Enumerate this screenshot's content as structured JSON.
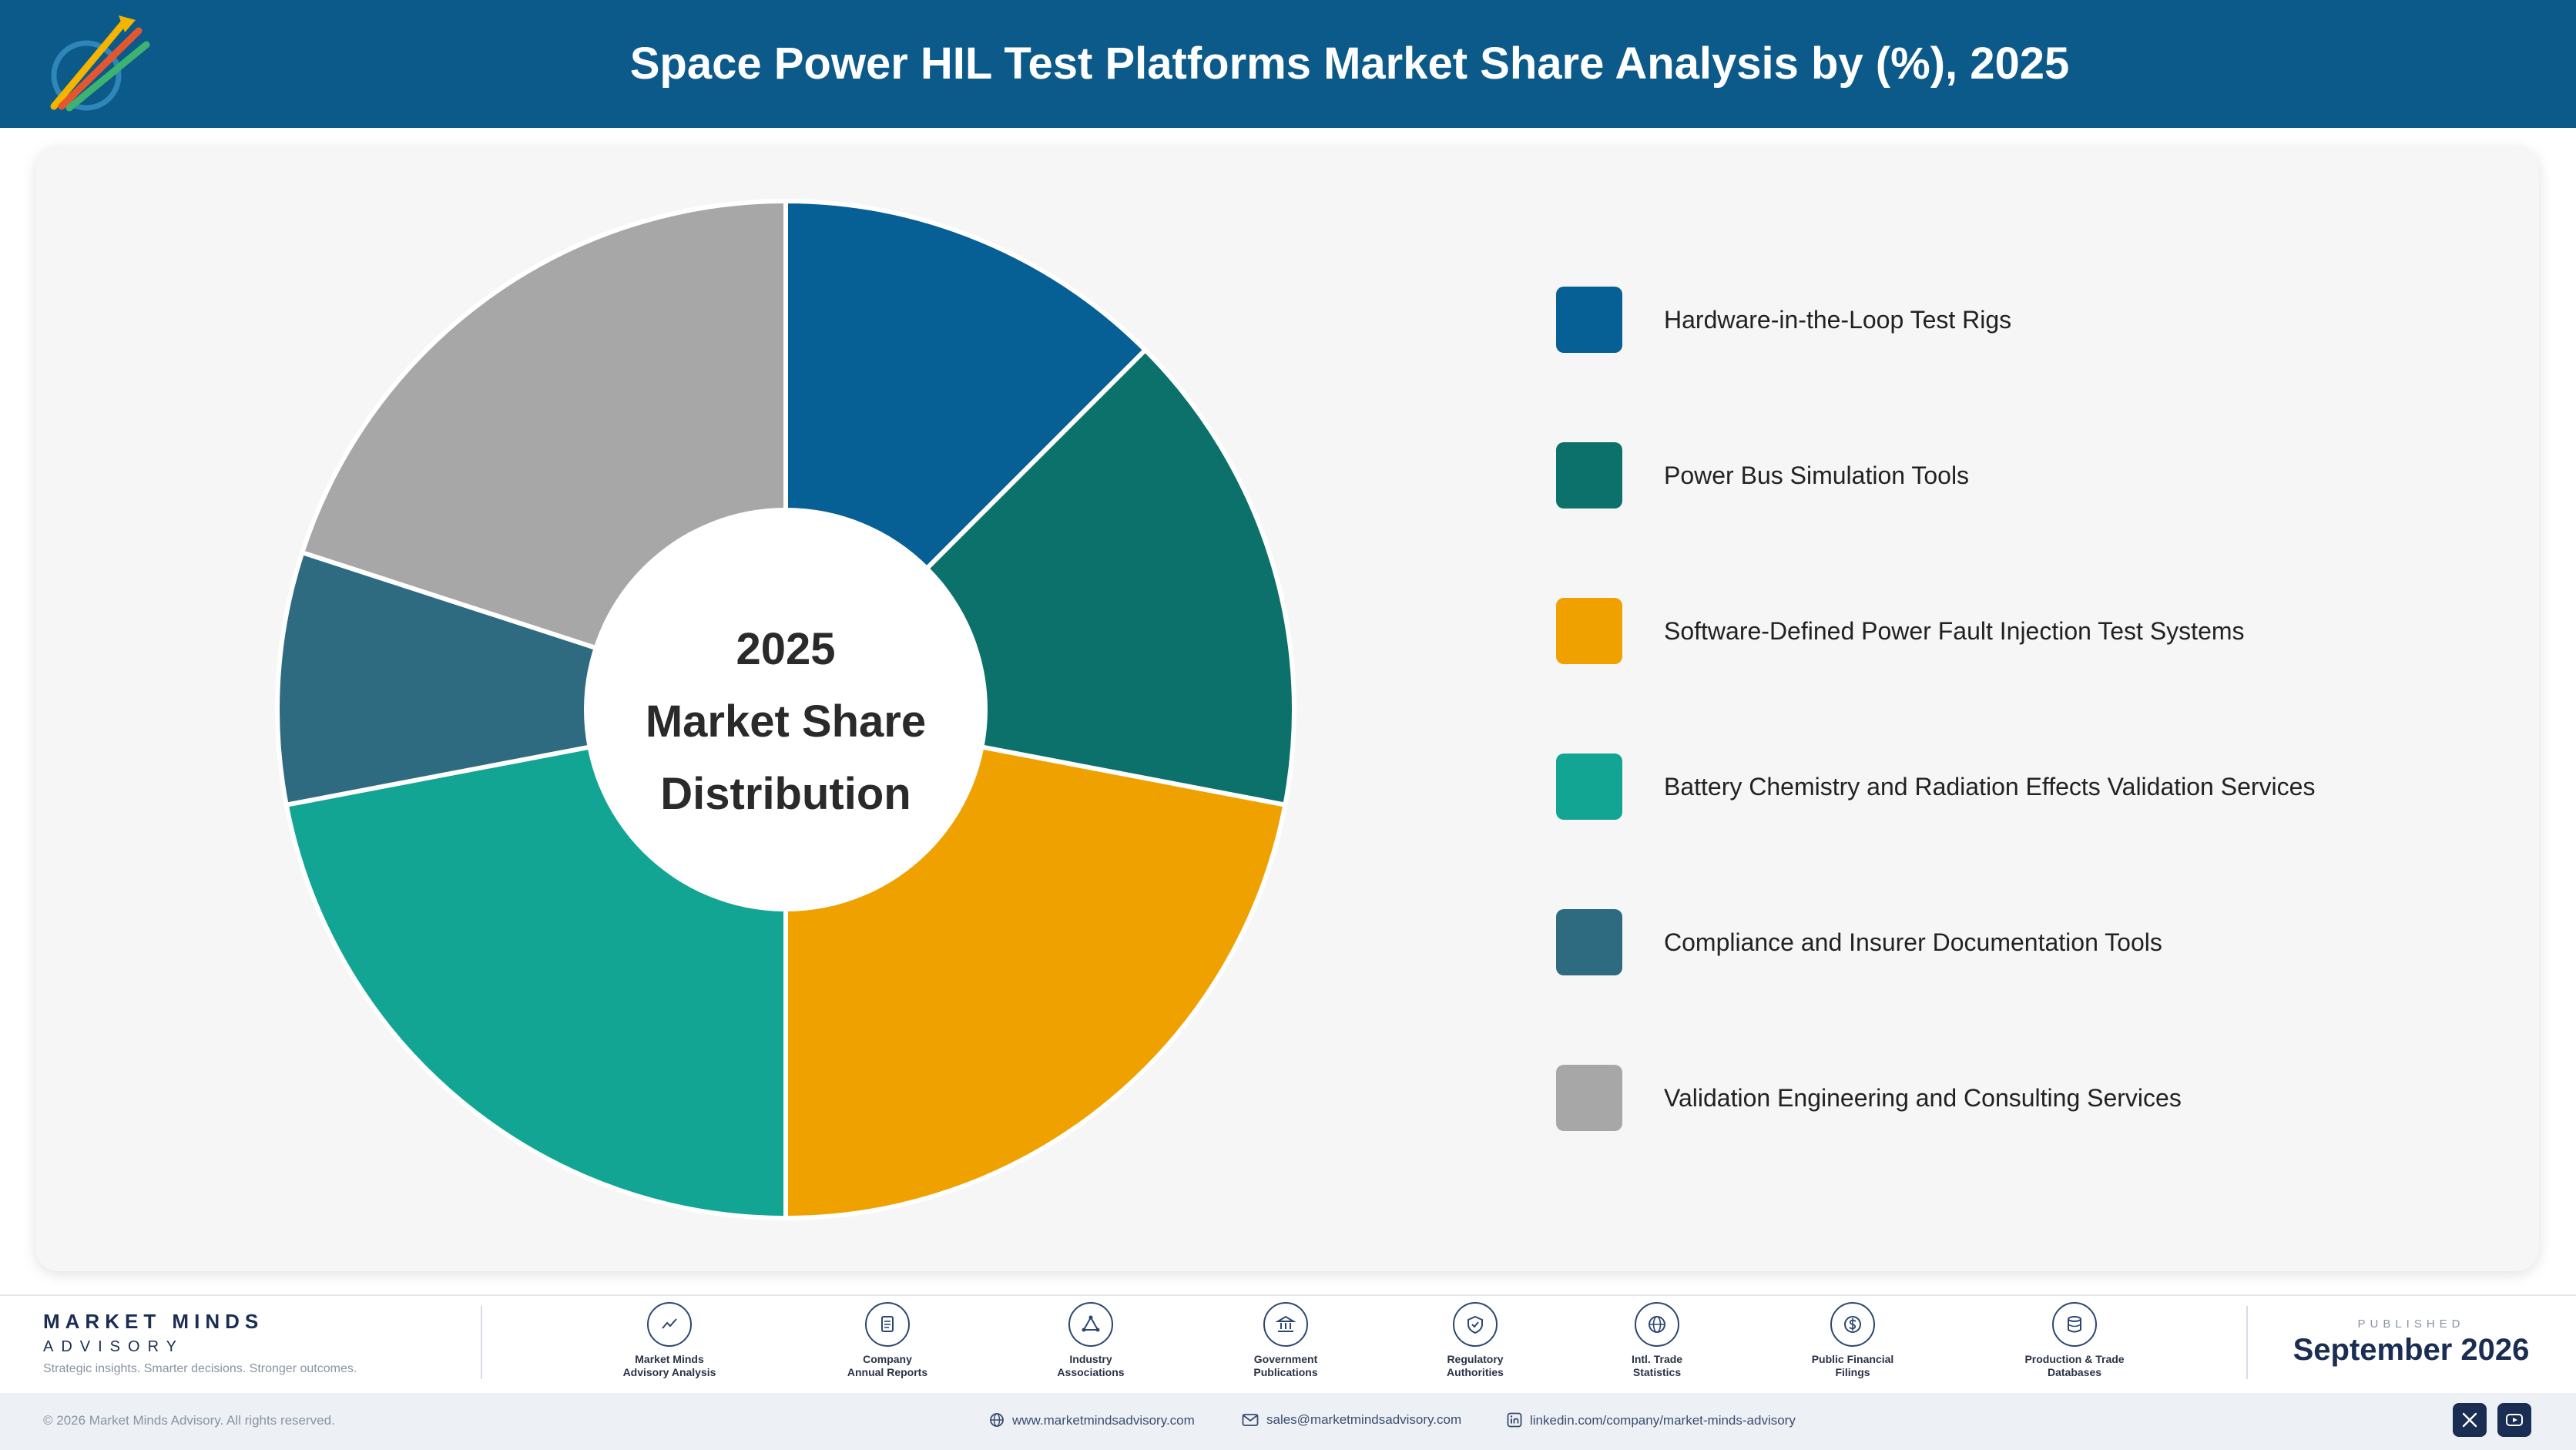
{
  "header": {
    "title": "Space Power HIL Test Platforms Market Share Analysis by (%), 2025",
    "logo_text": "Market Minds Advisory"
  },
  "chart_data": {
    "type": "pie",
    "variant": "donut",
    "center_label": [
      "2025",
      "Market Share",
      "Distribution"
    ],
    "categories": [
      "Hardware-in-the-Loop Test Rigs",
      "Power Bus Simulation Tools",
      "Software-Defined Power Fault Injection Test Systems",
      "Battery Chemistry and Radiation Effects Validation Services",
      "Compliance and Insurer Documentation Tools",
      "Validation Engineering and Consulting Services"
    ],
    "values": [
      12.5,
      15.5,
      22.0,
      22.0,
      8.0,
      20.0
    ],
    "colors": [
      "#065f95",
      "#0d716b",
      "#efa100",
      "#12a594",
      "#2e6b80",
      "#a7a7a7"
    ],
    "legend_position": "right"
  },
  "footer": {
    "brand_name": "MARKET MINDS",
    "brand_sub": "ADVISORY",
    "tagline": "Strategic insights. Smarter decisions. Stronger outcomes.",
    "sources": [
      {
        "icon": "trend-icon",
        "label1": "Market Minds",
        "label2": "Advisory Analysis"
      },
      {
        "icon": "document-icon",
        "label1": "Company",
        "label2": "Annual Reports"
      },
      {
        "icon": "network-icon",
        "label1": "Industry",
        "label2": "Associations"
      },
      {
        "icon": "building-icon",
        "label1": "Government",
        "label2": "Publications"
      },
      {
        "icon": "shield-icon",
        "label1": "Regulatory",
        "label2": "Authorities"
      },
      {
        "icon": "globe-icon",
        "label1": "Intl. Trade",
        "label2": "Statistics"
      },
      {
        "icon": "dollar-icon",
        "label1": "Public Financial",
        "label2": "Filings"
      },
      {
        "icon": "database-icon",
        "label1": "Production & Trade",
        "label2": "Databases"
      }
    ],
    "published_label": "PUBLISHED",
    "published_date": "September 2026",
    "copyright": "© 2026 Market Minds Advisory. All rights reserved.",
    "website": "www.marketmindsadvisory.com",
    "email": "sales@marketmindsadvisory.com",
    "linkedin": "linkedin.com/company/market-minds-advisory"
  }
}
